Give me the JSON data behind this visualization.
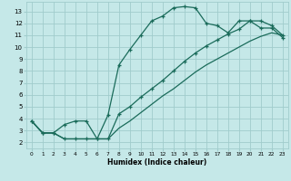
{
  "xlabel": "Humidex (Indice chaleur)",
  "bg_color": "#c5e8e8",
  "grid_color": "#a0cccc",
  "line_color": "#1a6b5a",
  "line1_x": [
    0,
    1,
    2,
    3,
    4,
    5,
    6,
    7,
    8,
    9,
    10,
    11,
    12,
    13,
    14,
    15,
    16,
    17,
    18,
    19,
    20,
    21,
    22,
    23
  ],
  "line1_y": [
    3.8,
    2.8,
    2.8,
    2.3,
    2.3,
    2.3,
    2.3,
    4.3,
    8.5,
    9.8,
    11.0,
    12.2,
    12.6,
    13.3,
    13.4,
    13.3,
    12.0,
    11.8,
    11.2,
    12.2,
    12.2,
    11.6,
    11.6,
    10.8
  ],
  "line2_x": [
    0,
    1,
    2,
    3,
    4,
    5,
    6,
    7,
    8,
    9,
    10,
    11,
    12,
    13,
    14,
    15,
    16,
    17,
    18,
    19,
    20,
    21,
    22,
    23
  ],
  "line2_y": [
    3.8,
    2.8,
    2.8,
    3.5,
    3.8,
    3.8,
    2.3,
    2.3,
    4.4,
    5.0,
    5.8,
    6.5,
    7.2,
    8.0,
    8.8,
    9.5,
    10.1,
    10.6,
    11.1,
    11.5,
    12.2,
    12.2,
    11.8,
    11.0
  ],
  "line3_x": [
    0,
    1,
    2,
    3,
    4,
    5,
    6,
    7,
    8,
    9,
    10,
    11,
    12,
    13,
    14,
    15,
    16,
    17,
    18,
    19,
    20,
    21,
    22,
    23
  ],
  "line3_y": [
    3.8,
    2.8,
    2.8,
    2.3,
    2.3,
    2.3,
    2.3,
    2.3,
    3.2,
    3.8,
    4.5,
    5.2,
    5.9,
    6.5,
    7.2,
    7.9,
    8.5,
    9.0,
    9.5,
    10.0,
    10.5,
    10.9,
    11.2,
    11.0
  ],
  "xlim": [
    -0.5,
    23.5
  ],
  "ylim": [
    1.5,
    13.8
  ],
  "yticks": [
    2,
    3,
    4,
    5,
    6,
    7,
    8,
    9,
    10,
    11,
    12,
    13
  ],
  "xticks": [
    0,
    1,
    2,
    3,
    4,
    5,
    6,
    7,
    8,
    9,
    10,
    11,
    12,
    13,
    14,
    15,
    16,
    17,
    18,
    19,
    20,
    21,
    22,
    23
  ],
  "figwidth": 3.2,
  "figheight": 2.0,
  "dpi": 100
}
